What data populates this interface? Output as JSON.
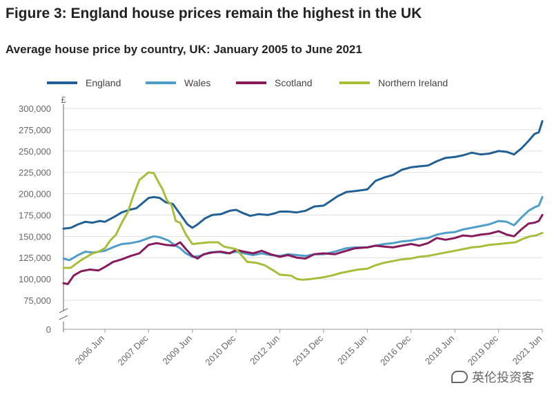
{
  "figure_title": "Figure 3: England house prices remain the highest in the UK",
  "chart_data": {
    "type": "line",
    "title": "Average house price by country, UK: January 2005 to June 2021",
    "ylabel": "£",
    "xlabel": "",
    "ylim": [
      75000,
      300000
    ],
    "axis_break": true,
    "zero_label": "0",
    "y_ticks": [
      75000,
      100000,
      125000,
      150000,
      175000,
      200000,
      225000,
      250000,
      275000,
      300000
    ],
    "y_tick_labels": [
      "75,000",
      "100,000",
      "125,000",
      "150,000",
      "175,000",
      "200,000",
      "225,000",
      "250,000",
      "275,000",
      "300,000"
    ],
    "x_ticks": [
      2006.42,
      2007.92,
      2009.42,
      2010.92,
      2012.42,
      2013.92,
      2015.42,
      2016.92,
      2018.42,
      2019.92,
      2021.42
    ],
    "x_tick_labels": [
      "2006 Jun",
      "2007 Dec",
      "2009 Jun",
      "2010 Dec",
      "2012 Jun",
      "2013 Dec",
      "2015 Jun",
      "2016 Dec",
      "2018 Jun",
      "2019 Dec",
      "2021 Jun"
    ],
    "x_range": [
      2005.0,
      2021.42
    ],
    "grid": "horizontal",
    "legend_position": "top",
    "series": [
      {
        "name": "England",
        "color": "#206095",
        "points": [
          [
            2005.0,
            159000
          ],
          [
            2005.25,
            160000
          ],
          [
            2005.5,
            164000
          ],
          [
            2005.75,
            167000
          ],
          [
            2006.0,
            166000
          ],
          [
            2006.25,
            168000
          ],
          [
            2006.42,
            167000
          ],
          [
            2006.75,
            173000
          ],
          [
            2007.0,
            178000
          ],
          [
            2007.25,
            181000
          ],
          [
            2007.5,
            183000
          ],
          [
            2007.75,
            190000
          ],
          [
            2007.92,
            195000
          ],
          [
            2008.1,
            196000
          ],
          [
            2008.3,
            195000
          ],
          [
            2008.5,
            190000
          ],
          [
            2008.75,
            188000
          ],
          [
            2009.0,
            176000
          ],
          [
            2009.25,
            164000
          ],
          [
            2009.42,
            160000
          ],
          [
            2009.6,
            164000
          ],
          [
            2009.85,
            171000
          ],
          [
            2010.1,
            175000
          ],
          [
            2010.4,
            176000
          ],
          [
            2010.7,
            180000
          ],
          [
            2010.92,
            181000
          ],
          [
            2011.1,
            178000
          ],
          [
            2011.4,
            174000
          ],
          [
            2011.7,
            176000
          ],
          [
            2012.0,
            175000
          ],
          [
            2012.25,
            177000
          ],
          [
            2012.42,
            179000
          ],
          [
            2012.7,
            179000
          ],
          [
            2013.0,
            178000
          ],
          [
            2013.3,
            180000
          ],
          [
            2013.6,
            185000
          ],
          [
            2013.92,
            186000
          ],
          [
            2014.1,
            190000
          ],
          [
            2014.4,
            197000
          ],
          [
            2014.7,
            202000
          ],
          [
            2015.0,
            203000
          ],
          [
            2015.42,
            205000
          ],
          [
            2015.7,
            215000
          ],
          [
            2016.0,
            219000
          ],
          [
            2016.3,
            222000
          ],
          [
            2016.6,
            228000
          ],
          [
            2016.92,
            231000
          ],
          [
            2017.2,
            232000
          ],
          [
            2017.5,
            233000
          ],
          [
            2017.8,
            238000
          ],
          [
            2018.1,
            242000
          ],
          [
            2018.42,
            243000
          ],
          [
            2018.7,
            245000
          ],
          [
            2019.0,
            248000
          ],
          [
            2019.3,
            246000
          ],
          [
            2019.6,
            247000
          ],
          [
            2019.92,
            250000
          ],
          [
            2020.2,
            249000
          ],
          [
            2020.45,
            246000
          ],
          [
            2020.7,
            253000
          ],
          [
            2020.95,
            262000
          ],
          [
            2021.15,
            270000
          ],
          [
            2021.3,
            272000
          ],
          [
            2021.42,
            285000
          ]
        ]
      },
      {
        "name": "Wales",
        "color": "#4e9ec9",
        "points": [
          [
            2005.0,
            124000
          ],
          [
            2005.2,
            122000
          ],
          [
            2005.5,
            128000
          ],
          [
            2005.75,
            132000
          ],
          [
            2006.0,
            131000
          ],
          [
            2006.42,
            133000
          ],
          [
            2006.75,
            138000
          ],
          [
            2007.0,
            141000
          ],
          [
            2007.3,
            142000
          ],
          [
            2007.6,
            144000
          ],
          [
            2007.92,
            148000
          ],
          [
            2008.1,
            150000
          ],
          [
            2008.3,
            149000
          ],
          [
            2008.6,
            145000
          ],
          [
            2008.8,
            140000
          ],
          [
            2009.0,
            136000
          ],
          [
            2009.2,
            130000
          ],
          [
            2009.42,
            126000
          ],
          [
            2009.7,
            127000
          ],
          [
            2010.0,
            131000
          ],
          [
            2010.3,
            132000
          ],
          [
            2010.6,
            130000
          ],
          [
            2010.92,
            132000
          ],
          [
            2011.2,
            130000
          ],
          [
            2011.5,
            128000
          ],
          [
            2011.8,
            130000
          ],
          [
            2012.1,
            128000
          ],
          [
            2012.42,
            127000
          ],
          [
            2012.7,
            129000
          ],
          [
            2013.0,
            128000
          ],
          [
            2013.3,
            127000
          ],
          [
            2013.6,
            129000
          ],
          [
            2013.92,
            129000
          ],
          [
            2014.3,
            132000
          ],
          [
            2014.7,
            136000
          ],
          [
            2015.0,
            137000
          ],
          [
            2015.42,
            137000
          ],
          [
            2015.7,
            139000
          ],
          [
            2016.0,
            141000
          ],
          [
            2016.3,
            142000
          ],
          [
            2016.6,
            144000
          ],
          [
            2016.92,
            145000
          ],
          [
            2017.2,
            147000
          ],
          [
            2017.5,
            148000
          ],
          [
            2017.8,
            152000
          ],
          [
            2018.1,
            154000
          ],
          [
            2018.42,
            155000
          ],
          [
            2018.7,
            158000
          ],
          [
            2019.0,
            160000
          ],
          [
            2019.3,
            162000
          ],
          [
            2019.6,
            164000
          ],
          [
            2019.92,
            168000
          ],
          [
            2020.2,
            167000
          ],
          [
            2020.45,
            163000
          ],
          [
            2020.7,
            172000
          ],
          [
            2020.95,
            180000
          ],
          [
            2021.15,
            184000
          ],
          [
            2021.3,
            186000
          ],
          [
            2021.42,
            196000
          ]
        ]
      },
      {
        "name": "Scotland",
        "color": "#871a5b",
        "points": [
          [
            2005.0,
            95000
          ],
          [
            2005.15,
            94000
          ],
          [
            2005.35,
            104000
          ],
          [
            2005.6,
            109000
          ],
          [
            2005.9,
            111000
          ],
          [
            2006.2,
            110000
          ],
          [
            2006.42,
            114000
          ],
          [
            2006.7,
            120000
          ],
          [
            2007.0,
            123000
          ],
          [
            2007.3,
            127000
          ],
          [
            2007.6,
            130000
          ],
          [
            2007.92,
            140000
          ],
          [
            2008.2,
            142000
          ],
          [
            2008.5,
            140000
          ],
          [
            2008.8,
            139000
          ],
          [
            2009.0,
            143000
          ],
          [
            2009.2,
            135000
          ],
          [
            2009.42,
            127000
          ],
          [
            2009.6,
            124000
          ],
          [
            2009.8,
            129000
          ],
          [
            2010.1,
            131000
          ],
          [
            2010.4,
            132000
          ],
          [
            2010.7,
            130000
          ],
          [
            2010.92,
            134000
          ],
          [
            2011.2,
            132000
          ],
          [
            2011.5,
            130000
          ],
          [
            2011.8,
            133000
          ],
          [
            2012.1,
            129000
          ],
          [
            2012.42,
            126000
          ],
          [
            2012.7,
            128000
          ],
          [
            2013.0,
            125000
          ],
          [
            2013.3,
            124000
          ],
          [
            2013.6,
            129000
          ],
          [
            2013.92,
            130000
          ],
          [
            2014.3,
            129000
          ],
          [
            2014.7,
            133000
          ],
          [
            2015.0,
            136000
          ],
          [
            2015.42,
            137000
          ],
          [
            2015.7,
            139000
          ],
          [
            2016.0,
            138000
          ],
          [
            2016.3,
            137000
          ],
          [
            2016.6,
            139000
          ],
          [
            2016.92,
            141000
          ],
          [
            2017.2,
            139000
          ],
          [
            2017.5,
            142000
          ],
          [
            2017.8,
            148000
          ],
          [
            2018.1,
            146000
          ],
          [
            2018.42,
            148000
          ],
          [
            2018.7,
            151000
          ],
          [
            2019.0,
            150000
          ],
          [
            2019.3,
            152000
          ],
          [
            2019.6,
            153000
          ],
          [
            2019.92,
            156000
          ],
          [
            2020.2,
            152000
          ],
          [
            2020.45,
            150000
          ],
          [
            2020.7,
            158000
          ],
          [
            2020.95,
            165000
          ],
          [
            2021.15,
            166000
          ],
          [
            2021.3,
            168000
          ],
          [
            2021.42,
            175000
          ]
        ]
      },
      {
        "name": "Northern Ireland",
        "color": "#a8bd3a",
        "points": [
          [
            2005.0,
            113000
          ],
          [
            2005.25,
            113000
          ],
          [
            2005.4,
            117000
          ],
          [
            2005.6,
            122000
          ],
          [
            2005.8,
            126000
          ],
          [
            2006.0,
            130000
          ],
          [
            2006.2,
            132000
          ],
          [
            2006.42,
            136000
          ],
          [
            2006.6,
            145000
          ],
          [
            2006.8,
            152000
          ],
          [
            2007.0,
            166000
          ],
          [
            2007.2,
            178000
          ],
          [
            2007.4,
            198000
          ],
          [
            2007.6,
            216000
          ],
          [
            2007.92,
            225000
          ],
          [
            2008.1,
            224000
          ],
          [
            2008.25,
            214000
          ],
          [
            2008.4,
            205000
          ],
          [
            2008.55,
            192000
          ],
          [
            2008.7,
            187000
          ],
          [
            2008.85,
            168000
          ],
          [
            2009.0,
            166000
          ],
          [
            2009.2,
            152000
          ],
          [
            2009.42,
            141000
          ],
          [
            2009.7,
            142000
          ],
          [
            2010.0,
            143000
          ],
          [
            2010.3,
            143000
          ],
          [
            2010.5,
            138000
          ],
          [
            2010.92,
            135000
          ],
          [
            2011.1,
            128000
          ],
          [
            2011.3,
            120000
          ],
          [
            2011.6,
            119000
          ],
          [
            2011.9,
            116000
          ],
          [
            2012.2,
            110000
          ],
          [
            2012.42,
            105000
          ],
          [
            2012.8,
            104000
          ],
          [
            2013.0,
            100000
          ],
          [
            2013.2,
            99000
          ],
          [
            2013.5,
            100000
          ],
          [
            2013.92,
            102000
          ],
          [
            2014.2,
            104000
          ],
          [
            2014.5,
            107000
          ],
          [
            2014.8,
            109000
          ],
          [
            2015.1,
            111000
          ],
          [
            2015.42,
            112000
          ],
          [
            2015.7,
            116000
          ],
          [
            2016.0,
            119000
          ],
          [
            2016.3,
            121000
          ],
          [
            2016.6,
            123000
          ],
          [
            2016.92,
            124000
          ],
          [
            2017.2,
            126000
          ],
          [
            2017.5,
            127000
          ],
          [
            2017.8,
            129000
          ],
          [
            2018.1,
            131000
          ],
          [
            2018.42,
            133000
          ],
          [
            2018.7,
            135000
          ],
          [
            2019.0,
            137000
          ],
          [
            2019.3,
            138000
          ],
          [
            2019.6,
            140000
          ],
          [
            2019.92,
            141000
          ],
          [
            2020.2,
            142000
          ],
          [
            2020.5,
            143000
          ],
          [
            2020.75,
            147000
          ],
          [
            2021.0,
            150000
          ],
          [
            2021.2,
            151000
          ],
          [
            2021.42,
            154000
          ]
        ]
      }
    ]
  },
  "watermark": "英伦投资客"
}
